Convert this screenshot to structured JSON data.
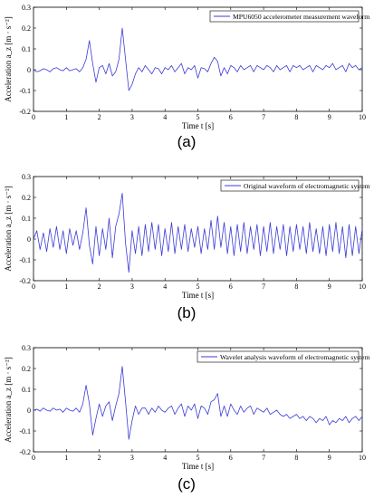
{
  "chart_data": [
    {
      "type": "line",
      "panel_label": "(a)",
      "xlabel": "Time  t  [s]",
      "ylabel": "Acceleration  a_z [m · s⁻²]",
      "xlim": [
        0,
        10
      ],
      "ylim": [
        -0.2,
        0.3
      ],
      "xticks": [
        "0",
        "1",
        "2",
        "3",
        "4",
        "5",
        "6",
        "7",
        "8",
        "9",
        "10"
      ],
      "yticks": [
        "-0.2",
        "-0.1",
        "0",
        "0.1",
        "0.2",
        "0.3"
      ],
      "legend": "top-right",
      "grid": false,
      "color": "#3b3bd6",
      "series": [
        {
          "name": "MPU6050 accelerometer measurement waveform",
          "x": [
            0,
            0.1,
            0.2,
            0.3,
            0.4,
            0.5,
            0.6,
            0.7,
            0.8,
            0.9,
            1.0,
            1.1,
            1.2,
            1.3,
            1.4,
            1.5,
            1.6,
            1.7,
            1.8,
            1.9,
            2.0,
            2.1,
            2.2,
            2.3,
            2.4,
            2.5,
            2.6,
            2.7,
            2.8,
            2.9,
            3.0,
            3.1,
            3.2,
            3.3,
            3.4,
            3.5,
            3.6,
            3.7,
            3.8,
            3.9,
            4.0,
            4.1,
            4.2,
            4.3,
            4.4,
            4.5,
            4.6,
            4.7,
            4.8,
            4.9,
            5.0,
            5.1,
            5.2,
            5.3,
            5.4,
            5.5,
            5.6,
            5.7,
            5.8,
            5.9,
            6.0,
            6.1,
            6.2,
            6.3,
            6.4,
            6.5,
            6.6,
            6.7,
            6.8,
            6.9,
            7.0,
            7.1,
            7.2,
            7.3,
            7.4,
            7.5,
            7.6,
            7.7,
            7.8,
            7.9,
            8.0,
            8.1,
            8.2,
            8.3,
            8.4,
            8.5,
            8.6,
            8.7,
            8.8,
            8.9,
            9.0,
            9.1,
            9.2,
            9.3,
            9.4,
            9.5,
            9.6,
            9.7,
            9.8,
            9.9,
            10.0
          ],
          "y": [
            0,
            -0.01,
            -0.005,
            0.005,
            0,
            -0.01,
            0.005,
            0.01,
            0,
            -0.005,
            0.01,
            -0.005,
            0,
            0.005,
            -0.01,
            0.01,
            0.05,
            0.14,
            0.03,
            -0.06,
            0.01,
            0.02,
            -0.02,
            0.03,
            -0.03,
            -0.01,
            0.05,
            0.2,
            0.05,
            -0.1,
            -0.07,
            -0.02,
            0.01,
            -0.01,
            0.02,
            0,
            -0.02,
            0.01,
            0.005,
            -0.02,
            0.01,
            0,
            0.02,
            -0.01,
            0.01,
            0.03,
            -0.02,
            0.01,
            0,
            0.02,
            -0.04,
            0.01,
            0.005,
            -0.01,
            0.03,
            0.06,
            0.04,
            -0.03,
            0.01,
            -0.02,
            0.02,
            0.01,
            -0.01,
            0.02,
            0,
            0.01,
            0.02,
            -0.01,
            0.02,
            0.01,
            0,
            0.02,
            0.01,
            -0.01,
            0.02,
            0,
            0.01,
            0.02,
            -0.01,
            0.02,
            0.01,
            0.02,
            0,
            0.01,
            0.02,
            -0.01,
            0.02,
            0.01,
            0,
            0.02,
            0.01,
            0.03,
            0,
            0.01,
            0.02,
            -0.01,
            0.03,
            0.01,
            0.02,
            0,
            0.01
          ]
        }
      ]
    },
    {
      "type": "line",
      "panel_label": "(b)",
      "xlabel": "Time  t  [s]",
      "ylabel": "Acceleration  a_z [m · s⁻²]",
      "xlim": [
        0,
        10
      ],
      "ylim": [
        -0.2,
        0.3
      ],
      "xticks": [
        "0",
        "1",
        "2",
        "3",
        "4",
        "5",
        "6",
        "7",
        "8",
        "9",
        "10"
      ],
      "yticks": [
        "-0.2",
        "-0.1",
        "0",
        "0.1",
        "0.2",
        "0.3"
      ],
      "legend": "top-right",
      "grid": false,
      "color": "#3b3bd6",
      "series": [
        {
          "name": "Original waveform of electromagnetic system",
          "x": [
            0,
            0.1,
            0.2,
            0.3,
            0.4,
            0.5,
            0.6,
            0.7,
            0.8,
            0.9,
            1.0,
            1.1,
            1.2,
            1.3,
            1.4,
            1.5,
            1.6,
            1.7,
            1.8,
            1.9,
            2.0,
            2.1,
            2.2,
            2.3,
            2.4,
            2.5,
            2.6,
            2.7,
            2.8,
            2.9,
            3.0,
            3.1,
            3.2,
            3.3,
            3.4,
            3.5,
            3.6,
            3.7,
            3.8,
            3.9,
            4.0,
            4.1,
            4.2,
            4.3,
            4.4,
            4.5,
            4.6,
            4.7,
            4.8,
            4.9,
            5.0,
            5.1,
            5.2,
            5.3,
            5.4,
            5.5,
            5.6,
            5.7,
            5.8,
            5.9,
            6.0,
            6.1,
            6.2,
            6.3,
            6.4,
            6.5,
            6.6,
            6.7,
            6.8,
            6.9,
            7.0,
            7.1,
            7.2,
            7.3,
            7.4,
            7.5,
            7.6,
            7.7,
            7.8,
            7.9,
            8.0,
            8.1,
            8.2,
            8.3,
            8.4,
            8.5,
            8.6,
            8.7,
            8.8,
            8.9,
            9.0,
            9.1,
            9.2,
            9.3,
            9.4,
            9.5,
            9.6,
            9.7,
            9.8,
            9.9,
            10.0
          ],
          "y": [
            0,
            0.04,
            -0.05,
            0.03,
            -0.06,
            0.05,
            -0.04,
            0.06,
            -0.05,
            0.04,
            -0.07,
            0.05,
            -0.03,
            0.04,
            -0.05,
            0.03,
            0.15,
            -0.03,
            -0.12,
            0.06,
            -0.08,
            0.05,
            -0.05,
            0.1,
            -0.09,
            0.06,
            0.12,
            0.22,
            -0.02,
            -0.16,
            0.04,
            -0.07,
            0.06,
            -0.08,
            0.07,
            -0.06,
            0.08,
            -0.05,
            0.07,
            -0.08,
            0.05,
            -0.06,
            0.08,
            -0.07,
            0.06,
            -0.05,
            0.07,
            -0.06,
            0.05,
            -0.04,
            0.06,
            -0.07,
            0.05,
            -0.05,
            0.09,
            -0.05,
            0.11,
            -0.04,
            0.08,
            -0.07,
            0.06,
            -0.08,
            0.07,
            -0.06,
            0.08,
            -0.07,
            0.06,
            -0.05,
            0.07,
            -0.08,
            0.06,
            -0.06,
            0.08,
            -0.07,
            0.06,
            -0.05,
            0.07,
            -0.08,
            0.06,
            -0.06,
            0.07,
            -0.05,
            0.06,
            -0.07,
            0.08,
            -0.06,
            0.05,
            -0.07,
            0.06,
            -0.08,
            0.07,
            -0.06,
            0.08,
            -0.07,
            0.06,
            -0.09,
            0.07,
            -0.08,
            0.06,
            -0.07,
            0.05
          ]
        }
      ]
    },
    {
      "type": "line",
      "panel_label": "(c)",
      "xlabel": "Time  t  [s]",
      "ylabel": "Acceleration  a_z [m · s⁻²]",
      "xlim": [
        0,
        10
      ],
      "ylim": [
        -0.2,
        0.3
      ],
      "xticks": [
        "0",
        "1",
        "2",
        "3",
        "4",
        "5",
        "6",
        "7",
        "8",
        "9",
        "10"
      ],
      "yticks": [
        "-0.2",
        "-0.1",
        "0",
        "0.1",
        "0.2",
        "0.3"
      ],
      "legend": "top-right",
      "grid": false,
      "color": "#3b3bd6",
      "series": [
        {
          "name": "Wavelet analysis waveform of electromagnetic system",
          "x": [
            0,
            0.1,
            0.2,
            0.3,
            0.4,
            0.5,
            0.6,
            0.7,
            0.8,
            0.9,
            1.0,
            1.1,
            1.2,
            1.3,
            1.4,
            1.5,
            1.6,
            1.7,
            1.8,
            1.9,
            2.0,
            2.1,
            2.2,
            2.3,
            2.4,
            2.5,
            2.6,
            2.7,
            2.8,
            2.9,
            3.0,
            3.1,
            3.2,
            3.3,
            3.4,
            3.5,
            3.6,
            3.7,
            3.8,
            3.9,
            4.0,
            4.1,
            4.2,
            4.3,
            4.4,
            4.5,
            4.6,
            4.7,
            4.8,
            4.9,
            5.0,
            5.1,
            5.2,
            5.3,
            5.4,
            5.5,
            5.6,
            5.7,
            5.8,
            5.9,
            6.0,
            6.1,
            6.2,
            6.3,
            6.4,
            6.5,
            6.6,
            6.7,
            6.8,
            6.9,
            7.0,
            7.1,
            7.2,
            7.3,
            7.4,
            7.5,
            7.6,
            7.7,
            7.8,
            7.9,
            8.0,
            8.1,
            8.2,
            8.3,
            8.4,
            8.5,
            8.6,
            8.7,
            8.8,
            8.9,
            9.0,
            9.1,
            9.2,
            9.3,
            9.4,
            9.5,
            9.6,
            9.7,
            9.8,
            9.9,
            10.0
          ],
          "y": [
            0,
            0.005,
            -0.005,
            0.01,
            0,
            -0.005,
            0.01,
            0,
            0.005,
            -0.01,
            0.01,
            0,
            -0.005,
            0.01,
            -0.01,
            0.03,
            0.12,
            0.03,
            -0.12,
            -0.04,
            0.03,
            -0.03,
            0.02,
            0.04,
            -0.05,
            0.02,
            0.08,
            0.21,
            0.04,
            -0.14,
            -0.05,
            0.02,
            -0.02,
            0.01,
            0.01,
            -0.02,
            0.01,
            -0.01,
            0.02,
            0,
            -0.01,
            0.01,
            0.02,
            -0.02,
            0.01,
            0.03,
            -0.03,
            0.02,
            0,
            0.03,
            -0.04,
            0.02,
            0.01,
            -0.02,
            0.04,
            0.05,
            0.08,
            -0.03,
            0.02,
            -0.03,
            0.03,
            0,
            -0.02,
            0.02,
            -0.01,
            0.01,
            0.02,
            -0.02,
            0.01,
            0,
            -0.01,
            0.01,
            -0.02,
            -0.01,
            0,
            -0.02,
            -0.03,
            -0.02,
            -0.04,
            -0.03,
            -0.02,
            -0.04,
            -0.03,
            -0.05,
            -0.03,
            -0.04,
            -0.06,
            -0.04,
            -0.05,
            -0.03,
            -0.07,
            -0.05,
            -0.06,
            -0.04,
            -0.05,
            -0.03,
            -0.06,
            -0.04,
            -0.03,
            -0.05,
            -0.03
          ]
        }
      ]
    }
  ]
}
